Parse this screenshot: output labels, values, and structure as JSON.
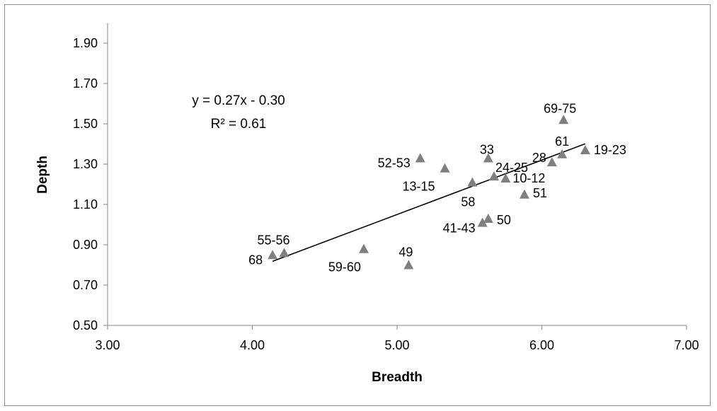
{
  "chart_data": {
    "type": "scatter",
    "xlabel": "Breadth",
    "ylabel": "Depth",
    "xlim": [
      3.0,
      7.0
    ],
    "ylim": [
      0.5,
      1.9
    ],
    "x_ticks": [
      "3.00",
      "4.00",
      "5.00",
      "6.00",
      "7.00"
    ],
    "y_ticks": [
      "0.50",
      "0.70",
      "0.90",
      "1.10",
      "1.30",
      "1.50",
      "1.70",
      "1.90"
    ],
    "grid": false,
    "legend": "none",
    "marker": "triangle",
    "marker_color": "#7f7f7f",
    "points": [
      {
        "label": "68",
        "x": 4.14,
        "y": 0.85
      },
      {
        "label": "55-56",
        "x": 4.22,
        "y": 0.86
      },
      {
        "label": "59-60",
        "x": 4.77,
        "y": 0.88
      },
      {
        "label": "49",
        "x": 5.08,
        "y": 0.8
      },
      {
        "label": "52-53",
        "x": 5.16,
        "y": 1.33
      },
      {
        "label": "13-15",
        "x": 5.33,
        "y": 1.28
      },
      {
        "label": "58",
        "x": 5.52,
        "y": 1.21
      },
      {
        "label": "41-43",
        "x": 5.59,
        "y": 1.01
      },
      {
        "label": "50",
        "x": 5.63,
        "y": 1.03
      },
      {
        "label": "33",
        "x": 5.63,
        "y": 1.33
      },
      {
        "label": "24-25",
        "x": 5.67,
        "y": 1.24
      },
      {
        "label": "10-12",
        "x": 5.75,
        "y": 1.23
      },
      {
        "label": "51",
        "x": 5.88,
        "y": 1.15
      },
      {
        "label": "28",
        "x": 6.07,
        "y": 1.31
      },
      {
        "label": "61",
        "x": 6.14,
        "y": 1.35
      },
      {
        "label": "69-75",
        "x": 6.15,
        "y": 1.52
      },
      {
        "label": "19-23",
        "x": 6.3,
        "y": 1.37
      }
    ],
    "trendline": {
      "slope": 0.27,
      "intercept": -0.3,
      "x_range": [
        4.14,
        6.3
      ],
      "equation": "y = 0.27x - 0.30",
      "r_squared": "R² = 0.61",
      "color": "#000000"
    }
  }
}
